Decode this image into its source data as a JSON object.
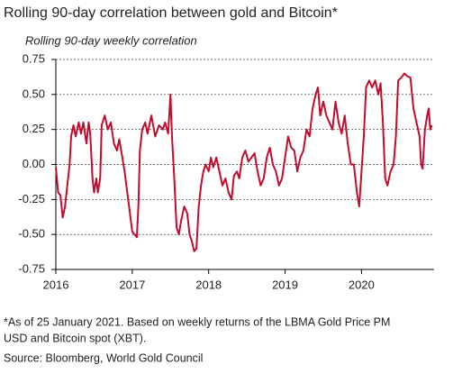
{
  "chart_data": {
    "type": "line",
    "title": "Rolling 90-day correlation between gold and Bitcoin*",
    "subtitle": "Rolling 90-day weekly correlation",
    "notes": [
      "*As of 25 January 2021. Based on weekly returns of the LBMA Gold Price PM",
      "USD and Bitcoin spot (XBT)."
    ],
    "source": "Source: Bloomberg, World Gold Council",
    "xlim": [
      2016,
      2020.95
    ],
    "xticks": [
      2016,
      2017,
      2018,
      2019,
      2020
    ],
    "ylim": [
      -0.75,
      0.75
    ],
    "yticks": [
      0.75,
      {
        "value": 0.5,
        "label": "0.50"
      },
      0.25,
      {
        "value": 0,
        "label": "0.00"
      },
      -0.25,
      {
        "value": -0.5,
        "label": "-0.50"
      },
      -0.75
    ],
    "grid": true,
    "series": [
      {
        "name": "Rolling 90-day weekly correlation",
        "color": "#c00d2e",
        "x": [
          2016.0,
          2016.03,
          2016.06,
          2016.09,
          2016.12,
          2016.15,
          2016.18,
          2016.2,
          2016.23,
          2016.26,
          2016.3,
          2016.33,
          2016.36,
          2016.4,
          2016.43,
          2016.45,
          2016.48,
          2016.5,
          2016.53,
          2016.55,
          2016.58,
          2016.6,
          2016.64,
          2016.68,
          2016.72,
          2016.76,
          2016.8,
          2016.83,
          2016.87,
          2016.9,
          2016.93,
          2016.97,
          2017.0,
          2017.03,
          2017.06,
          2017.08,
          2017.1,
          2017.13,
          2017.17,
          2017.2,
          2017.25,
          2017.3,
          2017.35,
          2017.4,
          2017.43,
          2017.47,
          2017.5,
          2017.52,
          2017.55,
          2017.58,
          2017.61,
          2017.64,
          2017.68,
          2017.72,
          2017.75,
          2017.78,
          2017.81,
          2017.84,
          2017.87,
          2017.9,
          2017.93,
          2017.96,
          2018.0,
          2018.03,
          2018.06,
          2018.1,
          2018.14,
          2018.18,
          2018.22,
          2018.26,
          2018.3,
          2018.33,
          2018.37,
          2018.4,
          2018.44,
          2018.48,
          2018.52,
          2018.56,
          2018.6,
          2018.64,
          2018.68,
          2018.72,
          2018.76,
          2018.8,
          2018.84,
          2018.88,
          2018.92,
          2018.96,
          2019.0,
          2019.04,
          2019.08,
          2019.12,
          2019.16,
          2019.2,
          2019.24,
          2019.28,
          2019.32,
          2019.36,
          2019.4,
          2019.43,
          2019.46,
          2019.5,
          2019.54,
          2019.58,
          2019.62,
          2019.66,
          2019.7,
          2019.74,
          2019.78,
          2019.82,
          2019.86,
          2019.9,
          2019.94,
          2019.97,
          2020.0,
          2020.03,
          2020.06,
          2020.1,
          2020.14,
          2020.18,
          2020.22,
          2020.25,
          2020.28,
          2020.31,
          2020.34,
          2020.38,
          2020.42,
          2020.45,
          2020.48,
          2020.52,
          2020.56,
          2020.6,
          2020.64,
          2020.68,
          2020.72,
          2020.76,
          2020.78,
          2020.8,
          2020.83,
          2020.86,
          2020.88,
          2020.9,
          2020.92
        ],
        "values": [
          -0.02,
          -0.2,
          -0.22,
          -0.38,
          -0.3,
          -0.15,
          0.0,
          0.2,
          0.28,
          0.2,
          0.3,
          0.22,
          0.3,
          0.15,
          0.3,
          0.22,
          -0.1,
          -0.2,
          -0.1,
          -0.2,
          -0.1,
          0.28,
          0.35,
          0.25,
          0.3,
          0.15,
          0.1,
          0.18,
          0.05,
          -0.05,
          -0.18,
          -0.35,
          -0.48,
          -0.5,
          -0.52,
          -0.3,
          0.1,
          0.25,
          0.3,
          0.22,
          0.35,
          0.2,
          0.28,
          0.25,
          0.3,
          0.22,
          0.5,
          0.2,
          -0.1,
          -0.45,
          -0.5,
          -0.4,
          -0.3,
          -0.35,
          -0.5,
          -0.55,
          -0.62,
          -0.6,
          -0.3,
          -0.15,
          -0.05,
          0.0,
          -0.05,
          0.05,
          -0.02,
          0.05,
          -0.05,
          -0.15,
          -0.1,
          -0.2,
          -0.25,
          -0.08,
          -0.05,
          -0.1,
          0.05,
          0.1,
          0.02,
          0.05,
          0.08,
          -0.05,
          -0.15,
          -0.1,
          0.05,
          0.12,
          0.0,
          -0.05,
          -0.15,
          -0.1,
          0.05,
          0.2,
          0.12,
          0.1,
          -0.05,
          0.05,
          0.1,
          0.25,
          0.2,
          0.4,
          0.5,
          0.55,
          0.35,
          0.45,
          0.35,
          0.3,
          0.25,
          0.45,
          0.3,
          0.22,
          0.35,
          0.15,
          0.0,
          0.0,
          -0.2,
          -0.3,
          -0.05,
          0.2,
          0.55,
          0.6,
          0.55,
          0.6,
          0.5,
          0.58,
          0.3,
          -0.1,
          -0.15,
          -0.05,
          0.0,
          0.2,
          0.6,
          0.62,
          0.65,
          0.63,
          0.62,
          0.4,
          0.3,
          0.2,
          0.0,
          -0.03,
          0.25,
          0.35,
          0.4,
          0.25,
          0.28
        ]
      }
    ]
  }
}
